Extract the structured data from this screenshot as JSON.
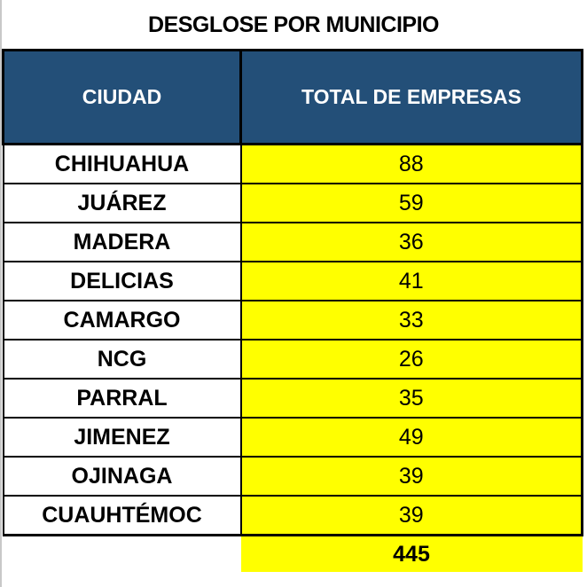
{
  "title": "DESGLOSE POR MUNICIPIO",
  "columns": [
    "CIUDAD",
    "TOTAL DE EMPRESAS"
  ],
  "rows": [
    {
      "city": "CHIHUAHUA",
      "total": "88"
    },
    {
      "city": "JUÁREZ",
      "total": "59"
    },
    {
      "city": "MADERA",
      "total": "36"
    },
    {
      "city": "DELICIAS",
      "total": "41"
    },
    {
      "city": "CAMARGO",
      "total": "33"
    },
    {
      "city": "NCG",
      "total": "26"
    },
    {
      "city": "PARRAL",
      "total": "35"
    },
    {
      "city": "JIMENEZ",
      "total": "49"
    },
    {
      "city": "OJINAGA",
      "total": "39"
    },
    {
      "city": "CUAUHTÉMOC",
      "total": "39"
    }
  ],
  "grand_total": "445",
  "colors": {
    "header": "#234f78",
    "highlight": "#ffff00"
  }
}
